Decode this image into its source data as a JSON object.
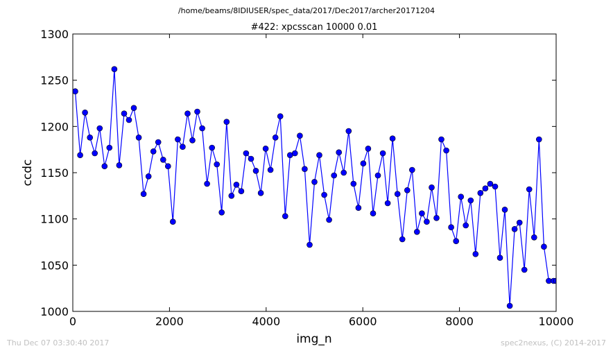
{
  "suptitle": "/home/beams/8IDIUSER/spec_data/2017/Dec2017/archer20171204",
  "footer": {
    "timestamp": "Thu Dec 07 03:30:40 2017",
    "credit": "spec2nexus, (C) 2014-2017"
  },
  "chart_data": {
    "type": "line",
    "title": "#422: xpcsscan 10000 0.01",
    "xlabel": "img_n",
    "ylabel": "ccdc",
    "xlim": [
      0,
      10000
    ],
    "ylim": [
      1000,
      1300
    ],
    "xticks": [
      0,
      2000,
      4000,
      6000,
      8000,
      10000
    ],
    "yticks": [
      1000,
      1050,
      1100,
      1150,
      1200,
      1250,
      1300
    ],
    "grid": false,
    "color": "#0000ff",
    "marker": "circle",
    "x": [
      50,
      152,
      253,
      354,
      455,
      556,
      657,
      758,
      859,
      960,
      1061,
      1162,
      1263,
      1364,
      1465,
      1566,
      1667,
      1768,
      1869,
      1970,
      2071,
      2172,
      2273,
      2374,
      2475,
      2576,
      2677,
      2778,
      2879,
      2980,
      3081,
      3182,
      3283,
      3384,
      3485,
      3586,
      3687,
      3788,
      3889,
      3990,
      4091,
      4192,
      4293,
      4394,
      4495,
      4596,
      4697,
      4798,
      4899,
      5000,
      5101,
      5202,
      5303,
      5404,
      5505,
      5606,
      5707,
      5808,
      5909,
      6010,
      6111,
      6212,
      6313,
      6414,
      6515,
      6616,
      6717,
      6818,
      6919,
      7020,
      7121,
      7222,
      7323,
      7424,
      7525,
      7626,
      7727,
      7828,
      7929,
      8030,
      8131,
      8232,
      8333,
      8434,
      8535,
      8636,
      8737,
      8838,
      8939,
      9040,
      9141,
      9242,
      9343,
      9444,
      9545,
      9646,
      9747,
      9848,
      9949,
      10000
    ],
    "y": [
      1238,
      1169,
      1215,
      1188,
      1171,
      1198,
      1157,
      1177,
      1262,
      1158,
      1214,
      1207,
      1220,
      1188,
      1127,
      1146,
      1173,
      1183,
      1164,
      1157,
      1097,
      1186,
      1178,
      1214,
      1185,
      1216,
      1198,
      1138,
      1177,
      1159,
      1107,
      1205,
      1125,
      1137,
      1130,
      1171,
      1165,
      1152,
      1128,
      1176,
      1153,
      1188,
      1211,
      1103,
      1169,
      1171,
      1190,
      1154,
      1072,
      1140,
      1169,
      1126,
      1099,
      1147,
      1172,
      1150,
      1195,
      1138,
      1112,
      1160,
      1176,
      1106,
      1147,
      1171,
      1117,
      1187,
      1127,
      1078,
      1131,
      1153,
      1086,
      1106,
      1097,
      1134,
      1101,
      1186,
      1174,
      1091,
      1076,
      1124,
      1093,
      1120,
      1062,
      1128,
      1133,
      1138,
      1135,
      1058,
      1110,
      1006,
      1089,
      1096,
      1045,
      1132,
      1080,
      1186,
      1070,
      1033,
      1033,
      1033
    ]
  }
}
